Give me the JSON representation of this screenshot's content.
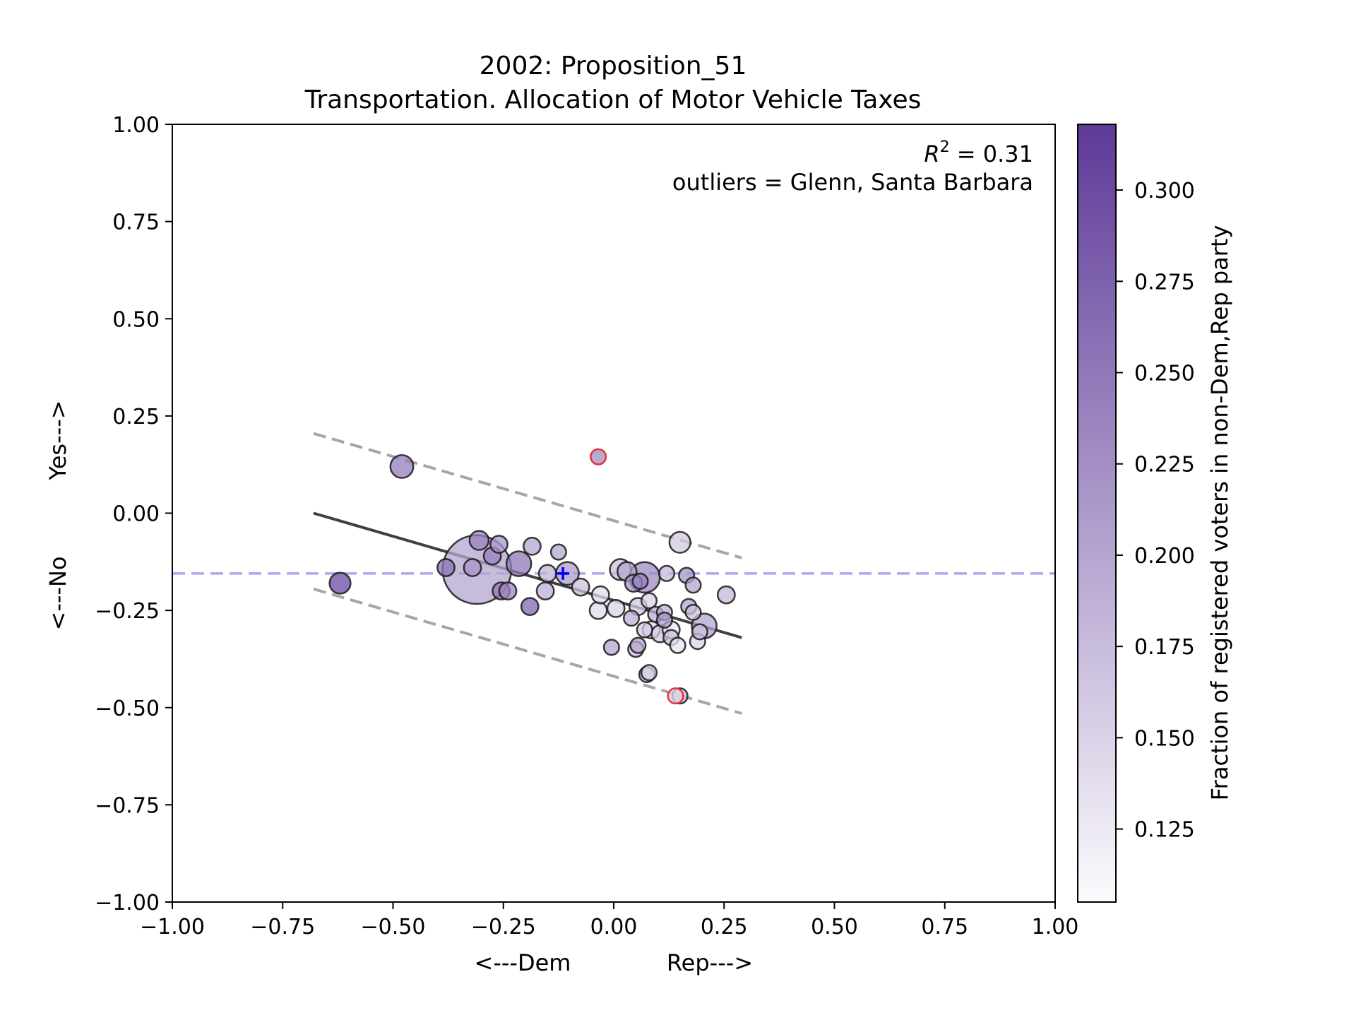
{
  "chart_data": {
    "type": "scatter",
    "title": "2002: Proposition_51",
    "subtitle": "Transportation. Allocation of Motor Vehicle Taxes",
    "xlabel_left": "<---Dem",
    "xlabel_right": "Rep--->",
    "ylabel_bottom": "<---No",
    "ylabel_top": "Yes--->",
    "xlim": [
      -1.0,
      1.0
    ],
    "ylim": [
      -1.0,
      1.0
    ],
    "x_ticks": [
      -1.0,
      -0.75,
      -0.5,
      -0.25,
      0.0,
      0.25,
      0.5,
      0.75,
      1.0
    ],
    "y_ticks": [
      -1.0,
      -0.75,
      -0.5,
      -0.25,
      0.0,
      0.25,
      0.5,
      0.75,
      1.0
    ],
    "x_tick_labels": [
      "−1.00",
      "−0.75",
      "−0.50",
      "−0.25",
      "0.00",
      "0.25",
      "0.50",
      "0.75",
      "1.00"
    ],
    "y_tick_labels": [
      "−1.00",
      "−0.75",
      "−0.50",
      "−0.25",
      "0.00",
      "0.25",
      "0.50",
      "0.75",
      "1.00"
    ],
    "annotation_r2_label": "R",
    "annotation_r2_sup": "2",
    "annotation_r2_value": " = 0.31",
    "annotation_outliers": "outliers = Glenn, Santa Barbara",
    "grid": false,
    "colorbar": {
      "label": "Fraction of registered voters in non-Dem,Rep party",
      "range": [
        0.105,
        0.318
      ],
      "ticks": [
        0.125,
        0.15,
        0.175,
        0.2,
        0.225,
        0.25,
        0.275,
        0.3
      ],
      "tick_labels": [
        "0.125",
        "0.150",
        "0.175",
        "0.200",
        "0.225",
        "0.250",
        "0.275",
        "0.300"
      ],
      "colormap": "Purples",
      "color_low": "#fcfbfd",
      "color_high": "#5e3a98"
    },
    "regression_line": {
      "x": [
        -0.68,
        0.29
      ],
      "y": [
        0.0,
        -0.32
      ]
    },
    "upper_band": {
      "x": [
        -0.68,
        0.29
      ],
      "y": [
        0.205,
        -0.115
      ]
    },
    "lower_band": {
      "x": [
        -0.68,
        0.29
      ],
      "y": [
        -0.195,
        -0.515
      ]
    },
    "state_average_y": -0.155,
    "state_marker": {
      "x": -0.115,
      "y": -0.155,
      "color": "#0000ff"
    },
    "reference_line_color": "#aaaaee",
    "band_color": "#a6a6a6",
    "fit_color": "#404040",
    "outlier_color": "#e8303a",
    "points": [
      {
        "x": -0.31,
        "y": -0.145,
        "c": 0.2,
        "s": 36
      },
      {
        "x": -0.62,
        "y": -0.18,
        "c": 0.3,
        "s": 11
      },
      {
        "x": -0.48,
        "y": 0.12,
        "c": 0.245,
        "s": 12
      },
      {
        "x": -0.38,
        "y": -0.14,
        "c": 0.255,
        "s": 9
      },
      {
        "x": -0.32,
        "y": -0.14,
        "c": 0.22,
        "s": 9
      },
      {
        "x": -0.305,
        "y": -0.07,
        "c": 0.24,
        "s": 10
      },
      {
        "x": -0.275,
        "y": -0.11,
        "c": 0.24,
        "s": 9
      },
      {
        "x": -0.26,
        "y": -0.08,
        "c": 0.215,
        "s": 9
      },
      {
        "x": -0.255,
        "y": -0.2,
        "c": 0.25,
        "s": 9
      },
      {
        "x": -0.24,
        "y": -0.2,
        "c": 0.235,
        "s": 9
      },
      {
        "x": -0.215,
        "y": -0.13,
        "c": 0.25,
        "s": 13
      },
      {
        "x": -0.19,
        "y": -0.24,
        "c": 0.27,
        "s": 9
      },
      {
        "x": -0.185,
        "y": -0.085,
        "c": 0.2,
        "s": 9
      },
      {
        "x": -0.155,
        "y": -0.2,
        "c": 0.19,
        "s": 9
      },
      {
        "x": -0.15,
        "y": -0.155,
        "c": 0.185,
        "s": 9
      },
      {
        "x": -0.125,
        "y": -0.1,
        "c": 0.2,
        "s": 8
      },
      {
        "x": -0.105,
        "y": -0.155,
        "c": 0.21,
        "s": 12
      },
      {
        "x": -0.075,
        "y": -0.19,
        "c": 0.17,
        "s": 9
      },
      {
        "x": -0.035,
        "y": -0.25,
        "c": 0.14,
        "s": 9
      },
      {
        "x": -0.03,
        "y": -0.21,
        "c": 0.14,
        "s": 9
      },
      {
        "x": -0.005,
        "y": -0.345,
        "c": 0.2,
        "s": 8
      },
      {
        "x": 0.005,
        "y": -0.245,
        "c": 0.15,
        "s": 9
      },
      {
        "x": 0.015,
        "y": -0.145,
        "c": 0.17,
        "s": 11
      },
      {
        "x": 0.03,
        "y": -0.15,
        "c": 0.2,
        "s": 10
      },
      {
        "x": 0.04,
        "y": -0.27,
        "c": 0.19,
        "s": 8
      },
      {
        "x": 0.045,
        "y": -0.18,
        "c": 0.22,
        "s": 9
      },
      {
        "x": 0.05,
        "y": -0.35,
        "c": 0.17,
        "s": 8
      },
      {
        "x": 0.055,
        "y": -0.34,
        "c": 0.2,
        "s": 8
      },
      {
        "x": 0.055,
        "y": -0.24,
        "c": 0.16,
        "s": 9
      },
      {
        "x": 0.06,
        "y": -0.175,
        "c": 0.24,
        "s": 8
      },
      {
        "x": 0.07,
        "y": -0.3,
        "c": 0.16,
        "s": 8
      },
      {
        "x": 0.07,
        "y": -0.165,
        "c": 0.23,
        "s": 16
      },
      {
        "x": 0.075,
        "y": -0.415,
        "c": 0.19,
        "s": 8
      },
      {
        "x": 0.08,
        "y": -0.225,
        "c": 0.15,
        "s": 8
      },
      {
        "x": 0.08,
        "y": -0.41,
        "c": 0.15,
        "s": 8
      },
      {
        "x": 0.085,
        "y": -0.3,
        "c": 0.14,
        "s": 9
      },
      {
        "x": 0.095,
        "y": -0.26,
        "c": 0.19,
        "s": 8
      },
      {
        "x": 0.105,
        "y": -0.31,
        "c": 0.16,
        "s": 9
      },
      {
        "x": 0.115,
        "y": -0.255,
        "c": 0.19,
        "s": 8
      },
      {
        "x": 0.115,
        "y": -0.275,
        "c": 0.21,
        "s": 8
      },
      {
        "x": 0.12,
        "y": -0.155,
        "c": 0.18,
        "s": 8
      },
      {
        "x": 0.13,
        "y": -0.3,
        "c": 0.13,
        "s": 9
      },
      {
        "x": 0.13,
        "y": -0.32,
        "c": 0.17,
        "s": 8
      },
      {
        "x": 0.145,
        "y": -0.34,
        "c": 0.13,
        "s": 8
      },
      {
        "x": 0.15,
        "y": -0.075,
        "c": 0.16,
        "s": 11
      },
      {
        "x": 0.15,
        "y": -0.47,
        "c": 0.17,
        "s": 8
      },
      {
        "x": 0.165,
        "y": -0.16,
        "c": 0.22,
        "s": 8
      },
      {
        "x": 0.17,
        "y": -0.24,
        "c": 0.2,
        "s": 8
      },
      {
        "x": 0.18,
        "y": -0.255,
        "c": 0.17,
        "s": 8
      },
      {
        "x": 0.18,
        "y": -0.185,
        "c": 0.2,
        "s": 8
      },
      {
        "x": 0.19,
        "y": -0.33,
        "c": 0.15,
        "s": 8
      },
      {
        "x": 0.195,
        "y": -0.305,
        "c": 0.17,
        "s": 8
      },
      {
        "x": 0.205,
        "y": -0.29,
        "c": 0.2,
        "s": 13
      },
      {
        "x": 0.255,
        "y": -0.21,
        "c": 0.18,
        "s": 9
      },
      {
        "x": -0.035,
        "y": 0.145,
        "c": 0.22,
        "s": 8,
        "outlier": true
      },
      {
        "x": 0.14,
        "y": -0.47,
        "c": 0.15,
        "s": 8,
        "outlier": true
      }
    ]
  }
}
